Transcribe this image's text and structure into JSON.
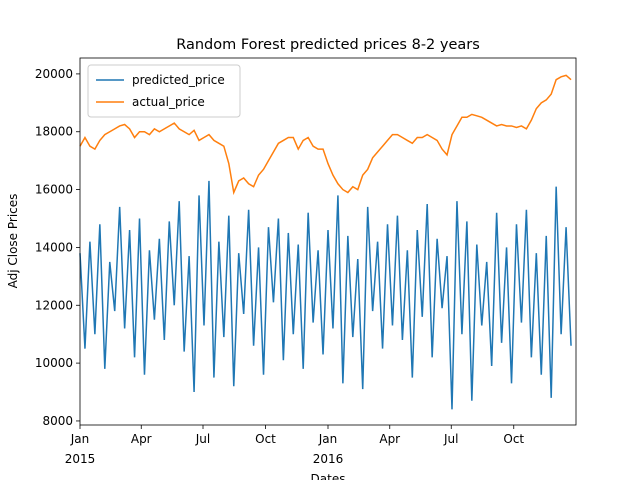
{
  "chart_data": {
    "type": "line",
    "title": "Random Forest predicted prices 8-2 years",
    "xlabel": "Dates",
    "ylabel": "Adj Close Prices",
    "x": [
      2015.0,
      2015.02,
      2015.04,
      2015.06,
      2015.08,
      2015.1,
      2015.12,
      2015.14,
      2015.16,
      2015.18,
      2015.2,
      2015.22,
      2015.24,
      2015.26,
      2015.28,
      2015.3,
      2015.32,
      2015.34,
      2015.36,
      2015.38,
      2015.4,
      2015.42,
      2015.44,
      2015.46,
      2015.48,
      2015.5,
      2015.52,
      2015.54,
      2015.56,
      2015.58,
      2015.6,
      2015.62,
      2015.64,
      2015.66,
      2015.68,
      2015.7,
      2015.72,
      2015.74,
      2015.76,
      2015.78,
      2015.8,
      2015.82,
      2015.84,
      2015.86,
      2015.88,
      2015.9,
      2015.92,
      2015.94,
      2015.96,
      2015.98,
      2016.0,
      2016.02,
      2016.04,
      2016.06,
      2016.08,
      2016.1,
      2016.12,
      2016.14,
      2016.16,
      2016.18,
      2016.2,
      2016.22,
      2016.24,
      2016.26,
      2016.28,
      2016.3,
      2016.32,
      2016.34,
      2016.36,
      2016.38,
      2016.4,
      2016.42,
      2016.44,
      2016.46,
      2016.48,
      2016.5,
      2016.52,
      2016.54,
      2016.56,
      2016.58,
      2016.6,
      2016.62,
      2016.64,
      2016.66,
      2016.68,
      2016.7,
      2016.72,
      2016.74,
      2016.76,
      2016.78,
      2016.8,
      2016.82,
      2016.84,
      2016.86,
      2016.88,
      2016.9,
      2016.92,
      2016.94,
      2016.96,
      2016.98
    ],
    "series": [
      {
        "name": "predicted_price",
        "color": "#1f77b4",
        "values": [
          13800,
          10500,
          14200,
          11000,
          14800,
          9800,
          13500,
          11800,
          15400,
          11200,
          14600,
          10200,
          15000,
          9600,
          13900,
          11500,
          14300,
          10800,
          14900,
          12000,
          15600,
          10400,
          13700,
          9000,
          15800,
          11300,
          16300,
          9500,
          14200,
          10900,
          15100,
          9200,
          13800,
          11700,
          15300,
          10600,
          14000,
          9600,
          14700,
          12100,
          15000,
          10100,
          14500,
          11000,
          14100,
          9800,
          15200,
          11400,
          13900,
          10300,
          14600,
          11200,
          15800,
          9300,
          14400,
          10900,
          13600,
          9100,
          15400,
          11800,
          14200,
          10500,
          14800,
          11300,
          15100,
          10800,
          13900,
          9500,
          14600,
          11600,
          15500,
          10200,
          14300,
          11900,
          13700,
          8400,
          15600,
          11000,
          14900,
          8700,
          14100,
          11300,
          13500,
          9900,
          15200,
          10700,
          14000,
          9300,
          14800,
          11400,
          15300,
          10200,
          13800,
          9600,
          14400,
          8800,
          16100,
          11000,
          14700,
          10600
        ]
      },
      {
        "name": "actual_price",
        "color": "#ff7f0e",
        "values": [
          17500,
          17800,
          17500,
          17400,
          17700,
          17900,
          18000,
          18100,
          18200,
          18250,
          18100,
          17800,
          18000,
          18000,
          17900,
          18100,
          18000,
          18100,
          18200,
          18300,
          18100,
          18000,
          17900,
          18050,
          17700,
          17800,
          17900,
          17700,
          17600,
          17500,
          16900,
          15900,
          16300,
          16400,
          16200,
          16100,
          16500,
          16700,
          17000,
          17300,
          17600,
          17700,
          17800,
          17800,
          17400,
          17700,
          17800,
          17500,
          17400,
          17400,
          16900,
          16500,
          16200,
          16000,
          15900,
          16100,
          16000,
          16500,
          16700,
          17100,
          17300,
          17500,
          17700,
          17900,
          17900,
          17800,
          17700,
          17600,
          17800,
          17800,
          17900,
          17800,
          17700,
          17400,
          17200,
          17900,
          18200,
          18500,
          18500,
          18600,
          18550,
          18500,
          18400,
          18300,
          18200,
          18250,
          18200,
          18200,
          18150,
          18200,
          18100,
          18400,
          18800,
          19000,
          19100,
          19300,
          19800,
          19900,
          19950,
          19800
        ]
      }
    ],
    "xlim": [
      2015.0,
      2017.0
    ],
    "xticks": [
      {
        "value": 2015.0,
        "label": "Jan"
      },
      {
        "value": 2015.247,
        "label": "Apr"
      },
      {
        "value": 2015.496,
        "label": "Jul"
      },
      {
        "value": 2015.748,
        "label": "Oct"
      },
      {
        "value": 2016.0,
        "label": "Jan"
      },
      {
        "value": 2016.249,
        "label": "Apr"
      },
      {
        "value": 2016.497,
        "label": "Jul"
      },
      {
        "value": 2016.749,
        "label": "Oct"
      }
    ],
    "xyear_labels": [
      {
        "value": 2015.0,
        "label": "2015"
      },
      {
        "value": 2016.0,
        "label": "2016"
      }
    ],
    "ylim": [
      7860,
      20550
    ],
    "yticks": [
      8000,
      10000,
      12000,
      14000,
      16000,
      18000,
      20000
    ],
    "grid": false,
    "legend": "upper-left"
  }
}
